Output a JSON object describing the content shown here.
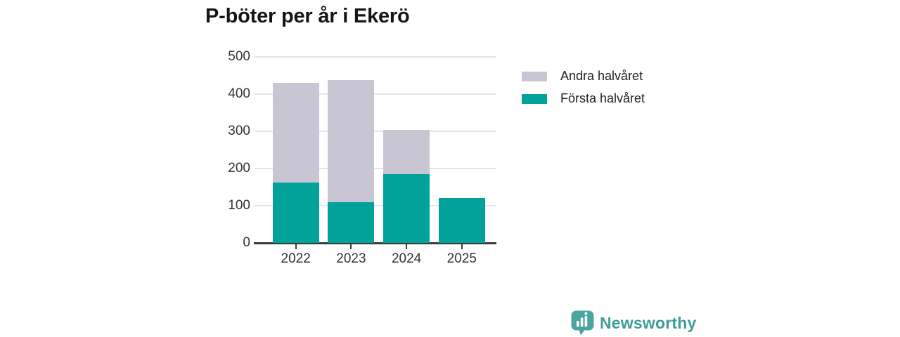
{
  "title": "P-böter per år i Ekerö",
  "colors": {
    "first_half": "#00a29a",
    "second_half": "#c9c6d3",
    "grid": "#e6e4e9",
    "axis": "#3b3b3b",
    "tick_text": "#333333",
    "title_text": "#151515",
    "brand_teal": "#3d9d98",
    "logo_teal": "#4aa5a1",
    "background": "#ffffff"
  },
  "chart_data": {
    "type": "bar",
    "stacked": true,
    "title": "P-böter per år i Ekerö",
    "categories": [
      "2022",
      "2023",
      "2024",
      "2025"
    ],
    "series": [
      {
        "name": "Första halvåret",
        "color_key": "first_half",
        "values": [
          162,
          110,
          184,
          120
        ]
      },
      {
        "name": "Andra halvåret",
        "color_key": "second_half",
        "values": [
          269,
          327,
          120,
          0
        ]
      }
    ],
    "totals": [
      431,
      437,
      304,
      120
    ],
    "xlabel": "",
    "ylabel": "",
    "ylim": [
      0,
      500
    ],
    "yticks": [
      0,
      100,
      200,
      300,
      400,
      500
    ],
    "grid": true,
    "legend_position": "right"
  },
  "legend": {
    "items": [
      {
        "label": "Andra halvåret",
        "color_key": "second_half"
      },
      {
        "label": "Första halvåret",
        "color_key": "first_half"
      }
    ]
  },
  "footer": {
    "brand": "Newsworthy"
  }
}
